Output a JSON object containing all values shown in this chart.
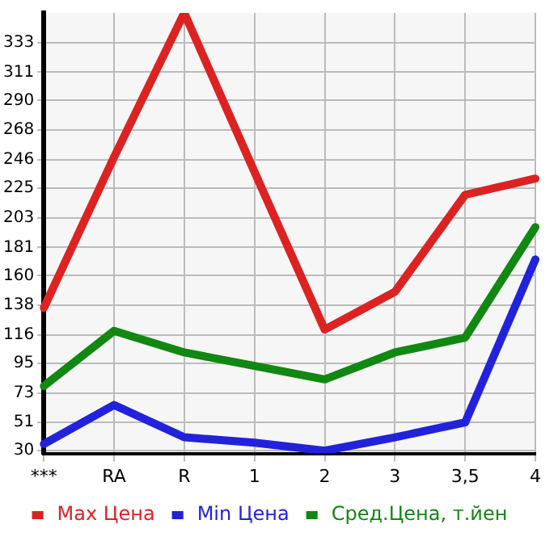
{
  "chart_data": {
    "type": "line",
    "categories": [
      "***",
      "RA",
      "R",
      "1",
      "2",
      "3",
      "3,5",
      "4"
    ],
    "series": [
      {
        "name": "Max Цена",
        "color": "#dd2222",
        "values": [
          136,
          248,
          355,
          237,
          120,
          148,
          220,
          232
        ]
      },
      {
        "name": "Min Цена",
        "color": "#2222dd",
        "values": [
          35,
          64,
          40,
          36,
          30,
          40,
          51,
          172
        ]
      },
      {
        "name": "Сред.Цена, т.йен",
        "color": "#118811",
        "values": [
          78,
          119,
          103,
          93,
          83,
          103,
          114,
          196
        ]
      }
    ],
    "ylim": [
      28,
      355
    ],
    "yticks": [
      30,
      51,
      73,
      95,
      116,
      138,
      160,
      181,
      203,
      225,
      246,
      268,
      290,
      311,
      333
    ],
    "grid": true,
    "legend": "bottom",
    "marker": "none",
    "line_style": "solid"
  }
}
